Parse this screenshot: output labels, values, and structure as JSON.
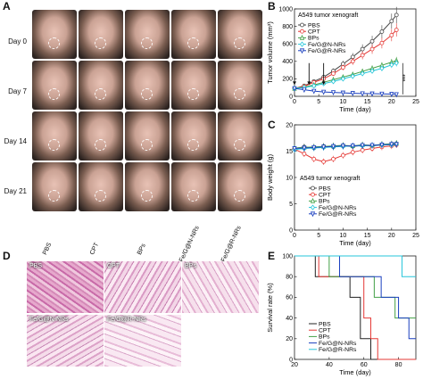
{
  "panel_labels": {
    "a": "A",
    "b": "B",
    "c": "C",
    "d": "D",
    "e": "E"
  },
  "panel_a": {
    "rows": [
      "Day 0",
      "Day 7",
      "Day 14",
      "Day 21"
    ],
    "groups": [
      "PBS",
      "CPT",
      "BPs",
      "Fe/G@N-NRs",
      "Fe/G@R-NRs"
    ]
  },
  "panel_d": {
    "tiles": [
      "PBS",
      "CPT",
      "BPs",
      "Fe/G@N-NRs",
      "Fe/G@R-NRs"
    ]
  },
  "chart_data": [
    {
      "type": "line",
      "panel": "B",
      "annotation": "A549 tumor xenograft",
      "xlabel": "Time (day)",
      "ylabel": "Tumor volume (mm³)",
      "xlim": [
        0,
        25
      ],
      "ylim": [
        0,
        1000
      ],
      "xticks": [
        0,
        5,
        10,
        15,
        20,
        25
      ],
      "yticks": [
        0,
        200,
        400,
        600,
        800,
        1000
      ],
      "significance": "***",
      "injection_days": [
        0,
        3,
        6
      ],
      "legend_position": "top-left",
      "x": [
        0,
        2,
        4,
        6,
        8,
        10,
        12,
        14,
        16,
        18,
        20,
        21
      ],
      "series": [
        {
          "name": "PBS",
          "color": "#444444",
          "marker": "circle",
          "values": [
            90,
            120,
            170,
            220,
            290,
            370,
            450,
            540,
            630,
            740,
            860,
            930
          ]
        },
        {
          "name": "CPT",
          "color": "#e53935",
          "marker": "circle",
          "values": [
            90,
            115,
            160,
            200,
            260,
            330,
            400,
            470,
            540,
            610,
            700,
            760
          ]
        },
        {
          "name": "BPs",
          "color": "#43a047",
          "marker": "triangle-up",
          "values": [
            90,
            105,
            130,
            160,
            190,
            220,
            250,
            285,
            320,
            355,
            390,
            410
          ]
        },
        {
          "name": "Fe/G@N-NRs",
          "color": "#26c6da",
          "marker": "diamond",
          "values": [
            90,
            100,
            120,
            145,
            170,
            200,
            230,
            260,
            290,
            320,
            360,
            380
          ]
        },
        {
          "name": "Fe/G@R-NRs",
          "color": "#1a3fbf",
          "marker": "triangle-down",
          "values": [
            90,
            75,
            60,
            50,
            45,
            40,
            35,
            32,
            30,
            28,
            25,
            22
          ]
        }
      ]
    },
    {
      "type": "line",
      "panel": "C",
      "annotation": "A549 tumor xenograft",
      "xlabel": "Time (day)",
      "ylabel": "Body weight (g)",
      "xlim": [
        0,
        25
      ],
      "ylim": [
        0,
        20
      ],
      "xticks": [
        0,
        5,
        10,
        15,
        20,
        25
      ],
      "yticks": [
        0,
        5,
        10,
        15,
        20
      ],
      "legend_position": "bottom-left",
      "x": [
        0,
        2,
        4,
        6,
        8,
        10,
        12,
        14,
        16,
        18,
        20,
        21
      ],
      "series": [
        {
          "name": "PBS",
          "color": "#444444",
          "marker": "circle",
          "values": [
            15.5,
            15.8,
            15.6,
            15.9,
            15.8,
            16.0,
            15.9,
            16.1,
            16.0,
            16.2,
            16.3,
            16.4
          ]
        },
        {
          "name": "CPT",
          "color": "#e53935",
          "marker": "circle",
          "values": [
            15.4,
            14.5,
            13.5,
            13.0,
            13.5,
            14.2,
            14.8,
            15.2,
            15.5,
            15.8,
            16.0,
            16.2
          ]
        },
        {
          "name": "BPs",
          "color": "#43a047",
          "marker": "triangle-up",
          "values": [
            15.6,
            15.7,
            15.8,
            15.9,
            16.0,
            16.1,
            16.0,
            16.2,
            16.1,
            16.3,
            16.4,
            16.5
          ]
        },
        {
          "name": "Fe/G@N-NRs",
          "color": "#26c6da",
          "marker": "diamond",
          "values": [
            15.3,
            15.5,
            15.6,
            15.7,
            15.8,
            15.9,
            16.0,
            16.0,
            16.1,
            16.2,
            16.2,
            16.3
          ]
        },
        {
          "name": "Fe/G@R-NRs",
          "color": "#1a3fbf",
          "marker": "triangle-down",
          "values": [
            15.5,
            15.6,
            15.7,
            15.8,
            15.9,
            16.0,
            16.0,
            16.1,
            16.1,
            16.2,
            16.3,
            16.3
          ]
        }
      ]
    },
    {
      "type": "line",
      "panel": "E",
      "step": true,
      "xlabel": "Time (day)",
      "ylabel": "Survival rate (%)",
      "xlim": [
        20,
        90
      ],
      "ylim": [
        0,
        100
      ],
      "xticks": [
        20,
        40,
        60,
        80
      ],
      "yticks": [
        0,
        20,
        40,
        60,
        80,
        100
      ],
      "legend_position": "bottom-left",
      "series": [
        {
          "name": "PBS",
          "color": "#222222",
          "x": [
            20,
            32,
            52,
            58,
            64
          ],
          "values": [
            100,
            80,
            60,
            20,
            0
          ]
        },
        {
          "name": "CPT",
          "color": "#e53935",
          "x": [
            20,
            34,
            60,
            64,
            68
          ],
          "values": [
            100,
            80,
            40,
            20,
            0
          ]
        },
        {
          "name": "BPs",
          "color": "#43a047",
          "x": [
            20,
            40,
            66,
            78,
            90
          ],
          "values": [
            100,
            80,
            60,
            40,
            40
          ]
        },
        {
          "name": "Fe/G@N-NRs",
          "color": "#1a3fbf",
          "x": [
            20,
            46,
            70,
            80,
            86,
            90
          ],
          "values": [
            100,
            80,
            60,
            40,
            20,
            20
          ]
        },
        {
          "name": "Fe/G@R-NRs",
          "color": "#26c6da",
          "x": [
            20,
            82,
            90
          ],
          "values": [
            100,
            80,
            80
          ]
        }
      ]
    }
  ]
}
